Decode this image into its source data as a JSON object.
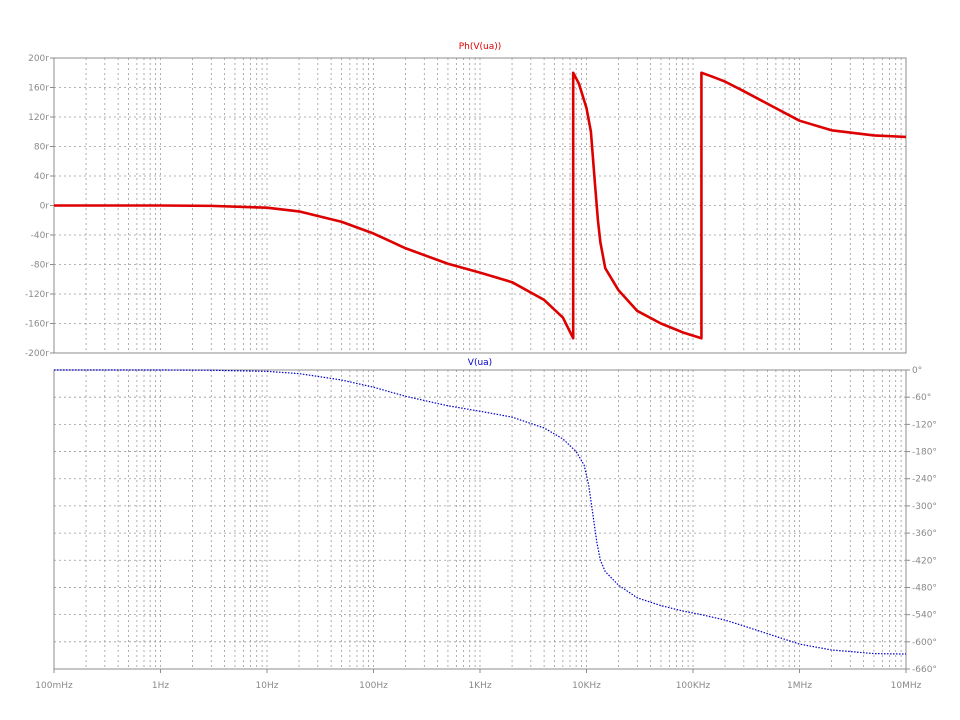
{
  "chart_data": [
    {
      "type": "line",
      "title": "Ph(V(ua))",
      "title_color": "#dd0000",
      "xscale": "log",
      "xlim": [
        0.1,
        10000000
      ],
      "ylim": [
        -200,
        200
      ],
      "ytick_values": [
        -200,
        -160,
        -120,
        -80,
        -40,
        0,
        40,
        80,
        120,
        160,
        200
      ],
      "ytick_labels": [
        "-200r",
        "-160r",
        "-120r",
        "-80r",
        "-40r",
        "0r",
        "40r",
        "80r",
        "120r",
        "160r",
        "200r"
      ],
      "grid": true,
      "series": [
        {
          "color": "#dd0000",
          "segments": [
            {
              "x": [
                0.1,
                1,
                3,
                10,
                20,
                50,
                100,
                200,
                500,
                1000,
                2000,
                4000,
                6000,
                7500
              ],
              "y": [
                0,
                0,
                -0.5,
                -3,
                -8,
                -22,
                -38,
                -58,
                -79,
                -91,
                -104,
                -128,
                -152,
                -180
              ]
            },
            {
              "x": [
                7500,
                8500,
                10000,
                11000,
                12000,
                12800,
                13500,
                15000,
                20000,
                30000,
                50000,
                80000,
                120000
              ],
              "y": [
                180,
                165,
                132,
                100,
                30,
                -20,
                -50,
                -85,
                -115,
                -143,
                -160,
                -172,
                -180
              ]
            },
            {
              "x": [
                120000,
                150000,
                200000,
                300000,
                500000,
                1000000,
                2000000,
                5000000,
                10000000
              ],
              "y": [
                180,
                175,
                168,
                155,
                138,
                115,
                102,
                95,
                93
              ]
            }
          ]
        }
      ]
    },
    {
      "type": "line",
      "title": "V(ua)",
      "title_color": "#0000cc",
      "xscale": "log",
      "xlim": [
        0.1,
        10000000
      ],
      "ylim": [
        -660,
        0
      ],
      "ytick_values": [
        0,
        -60,
        -120,
        -180,
        -240,
        -300,
        -360,
        -420,
        -480,
        -540,
        -600,
        -660
      ],
      "ytick_labels": [
        "0°",
        "-60°",
        "-120°",
        "-180°",
        "-240°",
        "-300°",
        "-360°",
        "-420°",
        "-480°",
        "-540°",
        "-600°",
        "-660°"
      ],
      "xtick_values": [
        0.1,
        1,
        10,
        100,
        1000,
        10000,
        100000,
        1000000,
        10000000
      ],
      "xtick_labels": [
        "100mHz",
        "1Hz",
        "10Hz",
        "100Hz",
        "1KHz",
        "10KHz",
        "100KHz",
        "1MHz",
        "10MHz"
      ],
      "grid": true,
      "series": [
        {
          "color": "#0000cc",
          "dotted": true,
          "segments": [
            {
              "x": [
                0.1,
                1,
                3,
                10,
                20,
                50,
                100,
                200,
                500,
                1000,
                2000,
                4000,
                6000,
                8000,
                9500,
                10500,
                11500,
                12500,
                13500,
                15000,
                20000,
                30000,
                50000,
                80000,
                120000,
                200000,
                300000,
                500000,
                1000000,
                2000000,
                5000000,
                10000000
              ],
              "y": [
                0,
                0,
                -0.5,
                -3,
                -8,
                -22,
                -38,
                -58,
                -79,
                -91,
                -104,
                -128,
                -152,
                -180,
                -210,
                -255,
                -320,
                -380,
                -420,
                -445,
                -475,
                -503,
                -520,
                -532,
                -540,
                -552,
                -565,
                -582,
                -605,
                -618,
                -626,
                -627
              ]
            }
          ]
        }
      ]
    }
  ]
}
